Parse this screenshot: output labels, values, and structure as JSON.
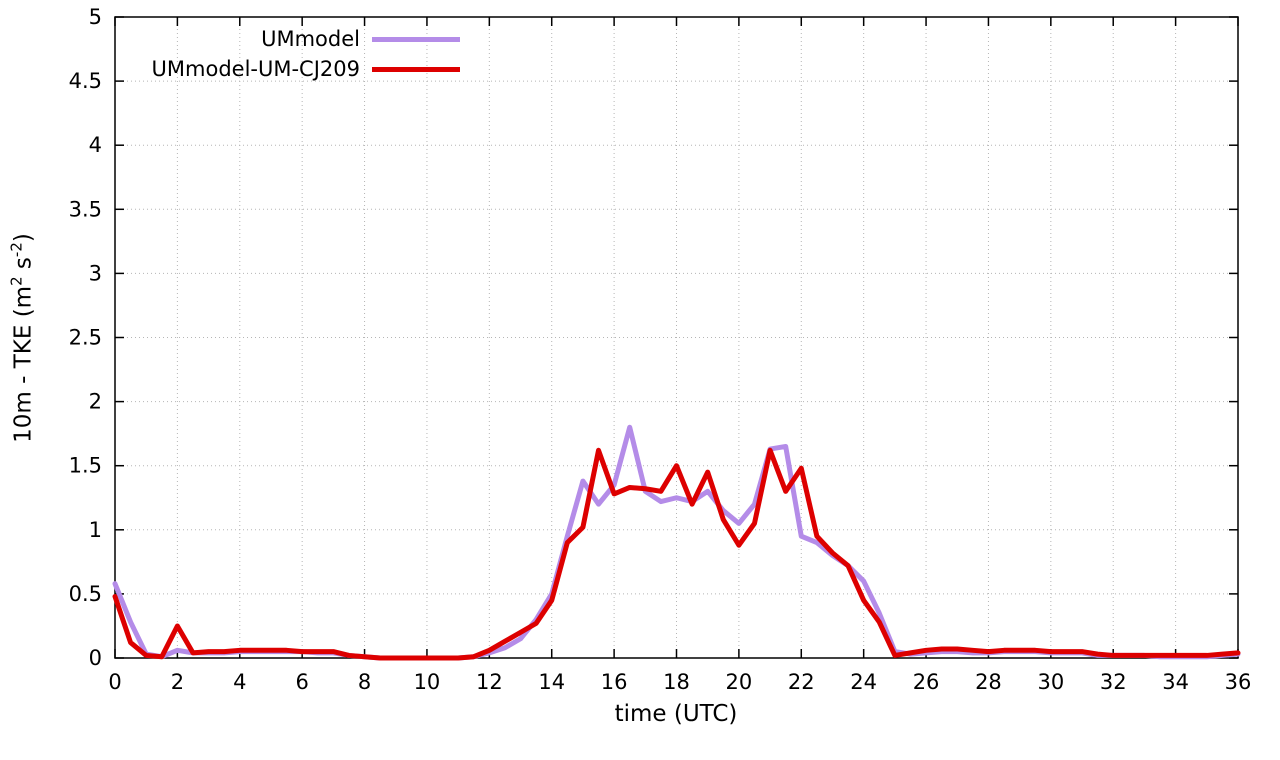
{
  "chart_data": {
    "type": "line",
    "title": "",
    "xlabel": "time (UTC)",
    "ylabel": "10m - TKE (m^2 s^-2)",
    "ylabel_parts": {
      "a": "10m - TKE (m",
      "sup1": "2",
      "b": " s",
      "sup2": "-2",
      "c": ")"
    },
    "xlim": [
      0,
      36
    ],
    "ylim": [
      0,
      5
    ],
    "xticks": [
      0,
      2,
      4,
      6,
      8,
      10,
      12,
      14,
      16,
      18,
      20,
      22,
      24,
      26,
      28,
      30,
      32,
      34,
      36
    ],
    "yticks": [
      0,
      0.5,
      1,
      1.5,
      2,
      2.5,
      3,
      3.5,
      4,
      4.5,
      5
    ],
    "grid": true,
    "grid_style": "dotted",
    "legend_position": "top-left-inside",
    "x": [
      0,
      0.5,
      1,
      1.5,
      2,
      2.5,
      3,
      3.5,
      4,
      4.5,
      5,
      5.5,
      6,
      6.5,
      7,
      7.5,
      8,
      8.5,
      9,
      9.5,
      10,
      10.5,
      11,
      11.5,
      12,
      12.5,
      13,
      13.5,
      14,
      14.5,
      15,
      15.5,
      16,
      16.5,
      17,
      17.5,
      18,
      18.5,
      19,
      19.5,
      20,
      20.5,
      21,
      21.5,
      22,
      22.5,
      23,
      23.5,
      24,
      24.5,
      25,
      25.5,
      26,
      26.5,
      27,
      27.5,
      28,
      28.5,
      29,
      29.5,
      30,
      30.5,
      31,
      31.5,
      32,
      32.5,
      33,
      33.5,
      34,
      34.5,
      35,
      35.5,
      36
    ],
    "series": [
      {
        "name": "UMmodel",
        "color": "#b48ce8",
        "values": [
          0.58,
          0.28,
          0.03,
          0.01,
          0.06,
          0.04,
          0.04,
          0.04,
          0.05,
          0.05,
          0.05,
          0.05,
          0.05,
          0.04,
          0.04,
          0.02,
          0.01,
          0,
          0,
          0,
          0,
          0,
          0,
          0.01,
          0.04,
          0.08,
          0.15,
          0.3,
          0.5,
          0.95,
          1.38,
          1.2,
          1.35,
          1.8,
          1.3,
          1.22,
          1.25,
          1.22,
          1.3,
          1.15,
          1.05,
          1.2,
          1.63,
          1.65,
          0.95,
          0.9,
          0.8,
          0.72,
          0.6,
          0.35,
          0.05,
          0.03,
          0.04,
          0.05,
          0.05,
          0.04,
          0.04,
          0.05,
          0.05,
          0.05,
          0.04,
          0.04,
          0.04,
          0.02,
          0.02,
          0.02,
          0.02,
          0.01,
          0.01,
          0.01,
          0.01,
          0.02,
          0.03
        ]
      },
      {
        "name": "UMmodel-UM-CJ209",
        "color": "#dd0000",
        "values": [
          0.48,
          0.12,
          0.02,
          0.01,
          0.25,
          0.04,
          0.05,
          0.05,
          0.06,
          0.06,
          0.06,
          0.06,
          0.05,
          0.05,
          0.05,
          0.02,
          0.01,
          0,
          0,
          0,
          0,
          0,
          0,
          0.01,
          0.06,
          0.13,
          0.2,
          0.27,
          0.45,
          0.9,
          1.02,
          1.62,
          1.28,
          1.33,
          1.32,
          1.3,
          1.5,
          1.2,
          1.45,
          1.08,
          0.88,
          1.05,
          1.62,
          1.3,
          1.48,
          0.95,
          0.82,
          0.72,
          0.45,
          0.28,
          0.02,
          0.04,
          0.06,
          0.07,
          0.07,
          0.06,
          0.05,
          0.06,
          0.06,
          0.06,
          0.05,
          0.05,
          0.05,
          0.03,
          0.02,
          0.02,
          0.02,
          0.02,
          0.02,
          0.02,
          0.02,
          0.03,
          0.04
        ]
      }
    ]
  }
}
